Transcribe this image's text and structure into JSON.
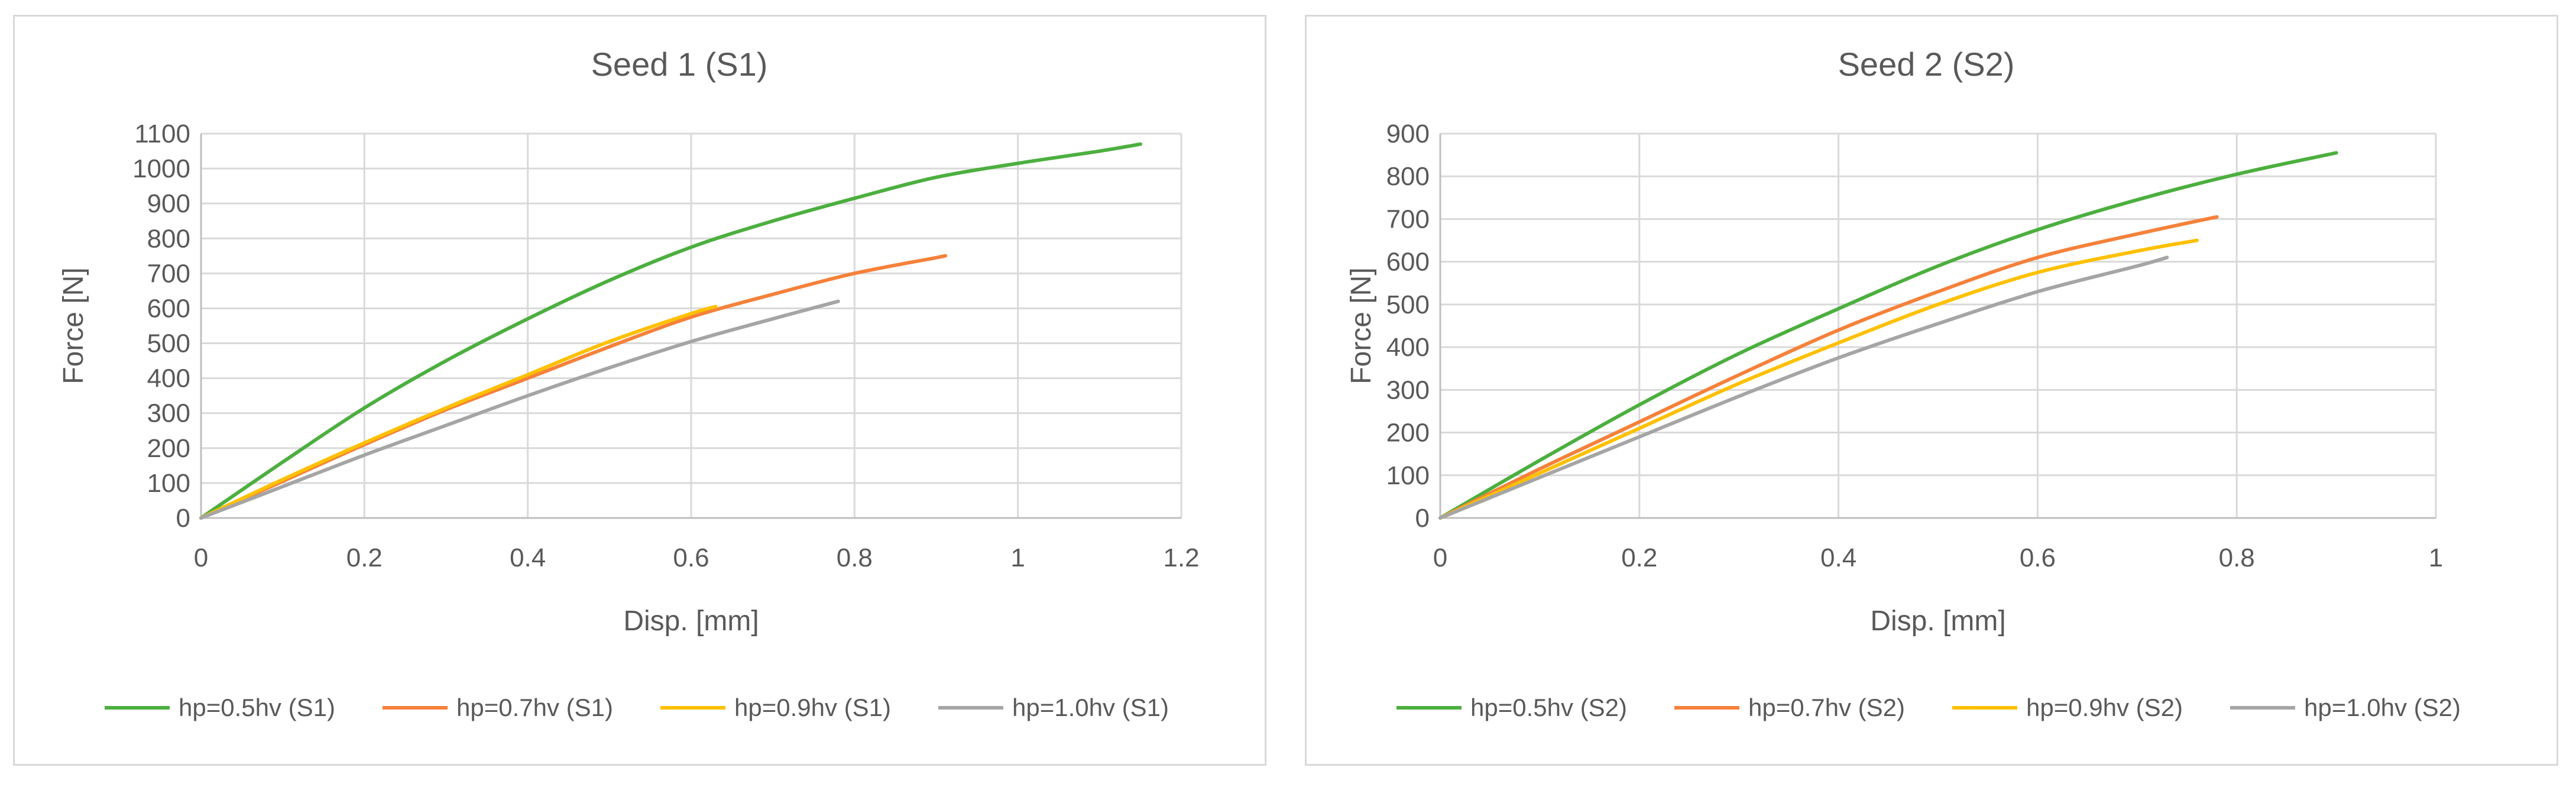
{
  "chart_data": [
    {
      "type": "line",
      "title": "Seed 1 (S1)",
      "xlabel": "Disp. [mm]",
      "ylabel": "Force [N]",
      "xlim": [
        0,
        1.2
      ],
      "ylim": [
        0,
        1100
      ],
      "xticks": [
        0,
        0.2,
        0.4,
        0.6,
        0.8,
        1,
        1.2
      ],
      "xtick_labels": [
        "0",
        "0.2",
        "0.4",
        "0.6",
        "0.8",
        "1",
        "1.2"
      ],
      "yticks": [
        0,
        100,
        200,
        300,
        400,
        500,
        600,
        700,
        800,
        900,
        1000,
        1100
      ],
      "ytick_labels": [
        "0",
        "100",
        "200",
        "300",
        "400",
        "500",
        "600",
        "700",
        "800",
        "900",
        "1000",
        "1100"
      ],
      "grid": true,
      "legend_position": "bottom",
      "series": [
        {
          "name": "hp=0.5hv (S1)",
          "color": "#4caf3f",
          "x": [
            0,
            0.1,
            0.2,
            0.3,
            0.4,
            0.5,
            0.6,
            0.7,
            0.8,
            0.9,
            1.0,
            1.1,
            1.15
          ],
          "y": [
            0,
            160,
            315,
            450,
            570,
            680,
            775,
            850,
            915,
            975,
            1015,
            1050,
            1070
          ]
        },
        {
          "name": "hp=0.7hv (S1)",
          "color": "#f5813a",
          "x": [
            0,
            0.1,
            0.2,
            0.3,
            0.4,
            0.5,
            0.6,
            0.7,
            0.8,
            0.9,
            0.91
          ],
          "y": [
            0,
            105,
            210,
            310,
            400,
            490,
            575,
            640,
            700,
            745,
            750
          ]
        },
        {
          "name": "hp=0.9hv (S1)",
          "color": "#ffc000",
          "x": [
            0,
            0.1,
            0.2,
            0.3,
            0.4,
            0.5,
            0.6,
            0.63
          ],
          "y": [
            0,
            110,
            215,
            315,
            410,
            505,
            585,
            605
          ]
        },
        {
          "name": "hp=1.0hv (S1)",
          "color": "#a5a5a5",
          "x": [
            0,
            0.1,
            0.2,
            0.3,
            0.4,
            0.5,
            0.6,
            0.7,
            0.78
          ],
          "y": [
            0,
            90,
            180,
            265,
            350,
            430,
            505,
            570,
            620
          ]
        }
      ]
    },
    {
      "type": "line",
      "title": "Seed 2 (S2)",
      "xlabel": "Disp. [mm]",
      "ylabel": "Force [N]",
      "xlim": [
        0,
        1
      ],
      "ylim": [
        0,
        900
      ],
      "xticks": [
        0,
        0.2,
        0.4,
        0.6,
        0.8,
        1
      ],
      "xtick_labels": [
        "0",
        "0.2",
        "0.4",
        "0.6",
        "0.8",
        "1"
      ],
      "yticks": [
        0,
        100,
        200,
        300,
        400,
        500,
        600,
        700,
        800,
        900
      ],
      "ytick_labels": [
        "0",
        "100",
        "200",
        "300",
        "400",
        "500",
        "600",
        "700",
        "800",
        "900"
      ],
      "grid": true,
      "legend_position": "bottom",
      "series": [
        {
          "name": "hp=0.5hv (S2)",
          "color": "#4caf3f",
          "x": [
            0,
            0.1,
            0.2,
            0.3,
            0.4,
            0.5,
            0.6,
            0.7,
            0.8,
            0.9
          ],
          "y": [
            0,
            135,
            265,
            385,
            490,
            590,
            675,
            745,
            805,
            855
          ]
        },
        {
          "name": "hp=0.7hv (S2)",
          "color": "#f5813a",
          "x": [
            0,
            0.1,
            0.2,
            0.3,
            0.4,
            0.5,
            0.6,
            0.7,
            0.78
          ],
          "y": [
            0,
            115,
            225,
            335,
            440,
            530,
            610,
            665,
            705
          ]
        },
        {
          "name": "hp=0.9hv (S2)",
          "color": "#ffc000",
          "x": [
            0,
            0.1,
            0.2,
            0.3,
            0.4,
            0.5,
            0.6,
            0.7,
            0.76
          ],
          "y": [
            0,
            105,
            210,
            315,
            410,
            500,
            575,
            625,
            650
          ]
        },
        {
          "name": "hp=1.0hv (S2)",
          "color": "#a5a5a5",
          "x": [
            0,
            0.1,
            0.2,
            0.3,
            0.4,
            0.5,
            0.6,
            0.7,
            0.73
          ],
          "y": [
            0,
            95,
            190,
            285,
            375,
            455,
            530,
            590,
            610
          ]
        }
      ]
    }
  ]
}
